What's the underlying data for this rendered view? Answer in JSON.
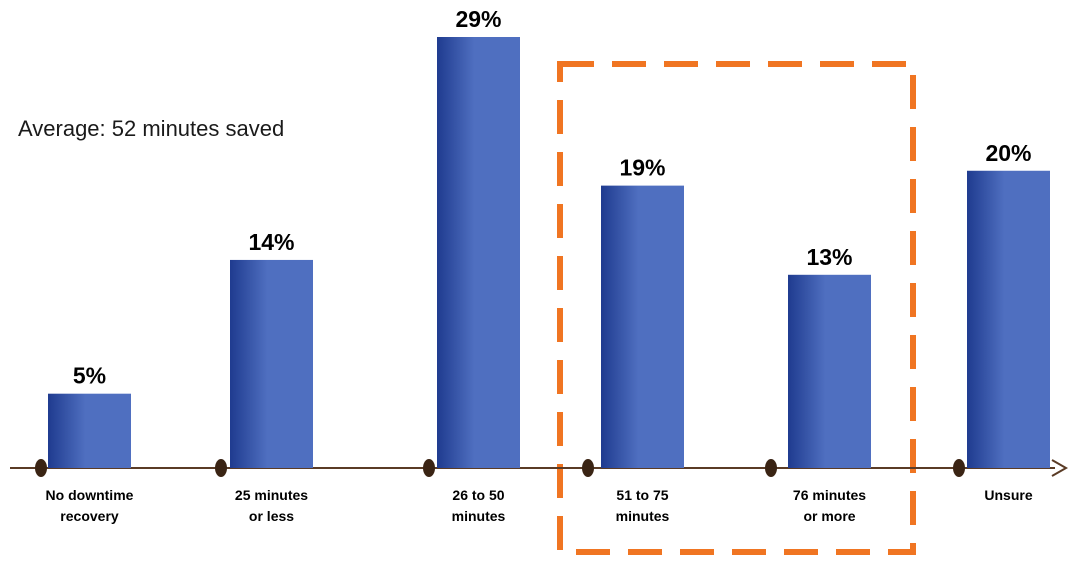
{
  "chart_data": {
    "type": "bar",
    "annotation": "Average: 52 minutes saved",
    "categories": [
      [
        "No downtime",
        "recovery"
      ],
      [
        "25 minutes",
        "or less"
      ],
      [
        "26 to 50",
        "minutes"
      ],
      [
        "51 to 75",
        "minutes"
      ],
      [
        "76 minutes",
        "or more"
      ],
      [
        "Unsure"
      ]
    ],
    "values": [
      5,
      14,
      29,
      19,
      13,
      20
    ],
    "value_labels": [
      "5%",
      "14%",
      "29%",
      "19%",
      "13%",
      "20%"
    ],
    "ylim": [
      0,
      29
    ],
    "highlight": {
      "categories": [
        "51 to 75 minutes",
        "76 minutes or more"
      ],
      "style": "dashed-box"
    },
    "colors": {
      "bar_dark": "#1f3b8f",
      "bar_light": "#4f6fc0",
      "axis": "#5a3b25",
      "dot": "#3a2414",
      "highlight": "#f07522"
    }
  }
}
